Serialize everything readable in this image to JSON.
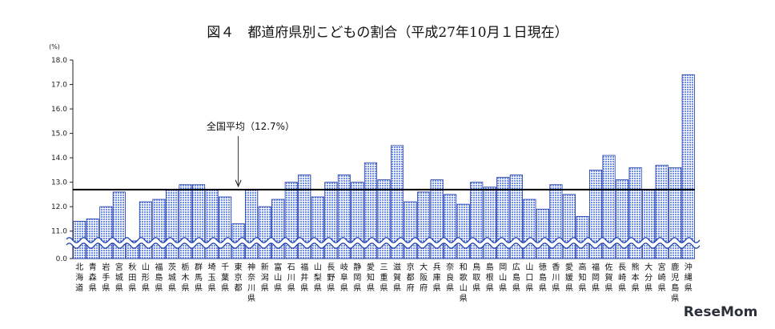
{
  "chart_data": {
    "type": "bar",
    "title": "図４　都道府県別こどもの割合（平成27年10月１日現在）",
    "unit_label": "(%)",
    "yticks": [
      "0.0",
      "11.0",
      "12.0",
      "13.0",
      "14.0",
      "15.0",
      "16.0",
      "17.0",
      "18.0"
    ],
    "ylim": [
      10.5,
      18.0
    ],
    "axis_break": true,
    "average": {
      "label": "全国平均（12.7%）",
      "value": 12.7
    },
    "categories": [
      "北海道",
      "青森県",
      "岩手県",
      "宮城県",
      "秋田県",
      "山形県",
      "福島県",
      "茨城県",
      "栃木県",
      "群馬県",
      "埼玉県",
      "千葉県",
      "東京都",
      "神奈川県",
      "新潟県",
      "富山県",
      "石川県",
      "福井県",
      "山梨県",
      "長野県",
      "岐阜県",
      "静岡県",
      "愛知県",
      "三重県",
      "滋賀県",
      "京都府",
      "大阪府",
      "兵庫県",
      "奈良県",
      "和歌山県",
      "鳥取県",
      "島根県",
      "岡山県",
      "広島県",
      "山口県",
      "徳島県",
      "香川県",
      "愛媛県",
      "高知県",
      "福岡県",
      "佐賀県",
      "長崎県",
      "熊本県",
      "大分県",
      "宮崎県",
      "鹿児島県",
      "沖縄県"
    ],
    "values": [
      11.4,
      11.5,
      12.0,
      12.6,
      10.6,
      12.2,
      12.3,
      12.7,
      12.9,
      12.9,
      12.7,
      12.4,
      11.3,
      12.7,
      12.0,
      12.3,
      13.0,
      13.3,
      12.4,
      13.0,
      13.3,
      13.0,
      13.8,
      13.1,
      14.5,
      12.2,
      12.6,
      13.1,
      12.5,
      12.1,
      13.0,
      12.8,
      13.2,
      13.3,
      12.3,
      11.9,
      12.9,
      12.5,
      11.6,
      13.5,
      14.1,
      13.1,
      13.6,
      12.7,
      13.7,
      13.6,
      17.4
    ],
    "grid": false,
    "bar_color": "#6f8ff0",
    "bar_stroke": "#1f3aa6",
    "break_color": "#1a3ea8"
  },
  "watermark": "ReseMom"
}
